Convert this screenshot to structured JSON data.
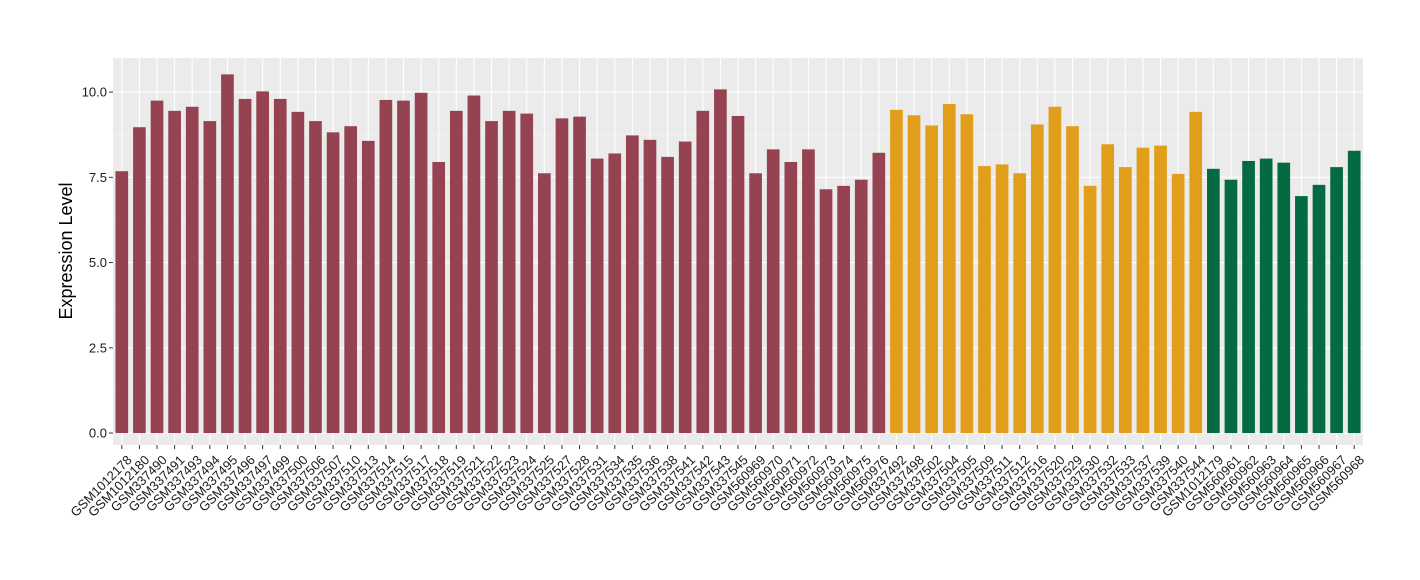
{
  "chart_data": {
    "type": "bar",
    "title": "",
    "xlabel": "",
    "ylabel": "Expression Level",
    "ylim": [
      -0.35,
      11.0
    ],
    "yticks": [
      "0.0",
      "2.5",
      "5.0",
      "7.5",
      "10.0"
    ],
    "ytick_values": [
      0,
      2.5,
      5,
      7.5,
      10
    ],
    "grid": true,
    "legend": "none",
    "colors": {
      "group1": "#954350",
      "group2": "#E09E1A",
      "group3": "#046A42",
      "panel_bg": "#EBEBEB",
      "grid_major": "#FFFFFF",
      "grid_minor": "#F5F5F5"
    },
    "categories": [
      "GSM1012178",
      "GSM1012180",
      "GSM337490",
      "GSM337491",
      "GSM337493",
      "GSM337494",
      "GSM337495",
      "GSM337496",
      "GSM337497",
      "GSM337499",
      "GSM337500",
      "GSM337506",
      "GSM337507",
      "GSM337510",
      "GSM337513",
      "GSM337514",
      "GSM337515",
      "GSM337517",
      "GSM337518",
      "GSM337519",
      "GSM337521",
      "GSM337522",
      "GSM337523",
      "GSM337524",
      "GSM337525",
      "GSM337527",
      "GSM337528",
      "GSM337531",
      "GSM337534",
      "GSM337535",
      "GSM337536",
      "GSM337538",
      "GSM337541",
      "GSM337542",
      "GSM337543",
      "GSM337545",
      "GSM560969",
      "GSM560970",
      "GSM560971",
      "GSM560972",
      "GSM560973",
      "GSM560974",
      "GSM560975",
      "GSM560976",
      "GSM337492",
      "GSM337498",
      "GSM337502",
      "GSM337504",
      "GSM337505",
      "GSM337509",
      "GSM337511",
      "GSM337512",
      "GSM337516",
      "GSM337520",
      "GSM337529",
      "GSM337530",
      "GSM337532",
      "GSM337533",
      "GSM337537",
      "GSM337539",
      "GSM337540",
      "GSM337544",
      "GSM1012179",
      "GSM560961",
      "GSM560962",
      "GSM560963",
      "GSM560964",
      "GSM560965",
      "GSM560966",
      "GSM560967",
      "GSM560968"
    ],
    "values": [
      7.68,
      8.97,
      9.75,
      9.45,
      9.57,
      9.15,
      10.52,
      9.8,
      10.02,
      9.8,
      9.42,
      9.15,
      8.82,
      9.0,
      8.57,
      9.77,
      9.75,
      9.98,
      7.95,
      9.45,
      9.9,
      9.15,
      9.45,
      9.37,
      7.62,
      9.23,
      9.28,
      8.05,
      8.2,
      8.73,
      8.6,
      8.1,
      8.55,
      9.45,
      10.08,
      9.3,
      7.62,
      8.32,
      7.95,
      8.32,
      7.15,
      7.25,
      7.43,
      8.22,
      9.48,
      9.32,
      9.02,
      9.65,
      9.35,
      7.83,
      7.88,
      7.62,
      9.05,
      9.57,
      9.0,
      7.25,
      8.47,
      7.8,
      8.37,
      8.43,
      7.6,
      9.42,
      7.75,
      7.43,
      7.98,
      8.05,
      7.93,
      6.95,
      7.28,
      7.8,
      8.28
    ],
    "groups": [
      1,
      1,
      1,
      1,
      1,
      1,
      1,
      1,
      1,
      1,
      1,
      1,
      1,
      1,
      1,
      1,
      1,
      1,
      1,
      1,
      1,
      1,
      1,
      1,
      1,
      1,
      1,
      1,
      1,
      1,
      1,
      1,
      1,
      1,
      1,
      1,
      1,
      1,
      1,
      1,
      1,
      1,
      1,
      1,
      2,
      2,
      2,
      2,
      2,
      2,
      2,
      2,
      2,
      2,
      2,
      2,
      2,
      2,
      2,
      2,
      2,
      2,
      3,
      3,
      3,
      3,
      3,
      3,
      3,
      3,
      3
    ]
  }
}
